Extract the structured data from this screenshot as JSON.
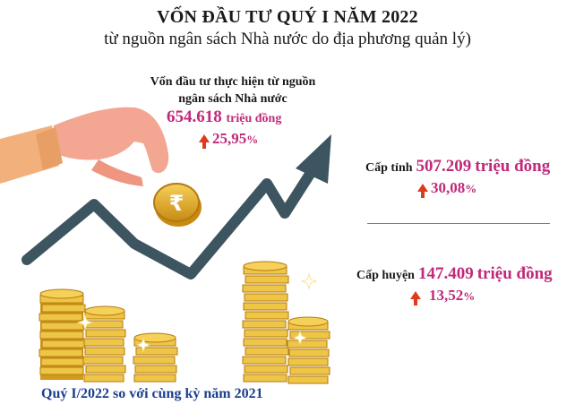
{
  "header": {
    "title": "VỐN ĐẦU TƯ QUÝ I NĂM 2022",
    "subtitle": "từ nguồn ngân sách Nhà nước do địa phương quản lý)"
  },
  "total": {
    "label_line1": "Vốn đầu tư thực hiện từ nguồn",
    "label_line2": "ngân sách Nhà nước",
    "value": "654.618",
    "unit": "triệu đồng",
    "change": "25,95",
    "percent_sign": "%"
  },
  "province": {
    "label": "Cấp tỉnh",
    "value": "507.209",
    "unit": "triệu đồng",
    "change": "30,08",
    "percent_sign": "%"
  },
  "district": {
    "label": "Cấp huyện",
    "value": "147.409",
    "unit": "triệu đồng",
    "change": "13,52",
    "percent_sign": "%"
  },
  "footer": {
    "note": "Quý I/2022 so với cùng kỳ năm 2021"
  },
  "colors": {
    "accent": "#c0297a",
    "arrow_up": "#e03a1e",
    "trend": "#3d5560",
    "coin": "#e7b32a",
    "footer_text": "#1b3e8f",
    "divider": "#3a8ecb"
  },
  "icons": [
    "hand-icon",
    "rupee-coin-icon",
    "trend-arrow-icon",
    "coin-stack-icon",
    "up-arrow-icon",
    "sparkle-icon"
  ]
}
